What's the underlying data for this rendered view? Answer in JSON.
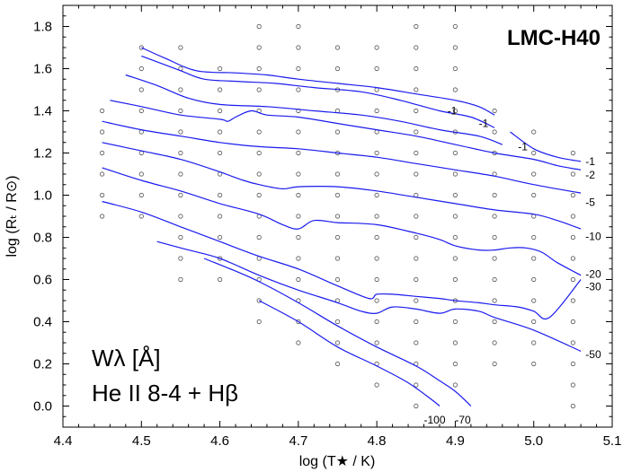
{
  "chart_data": {
    "type": "line",
    "title": "LMC-H40",
    "xlabel": "log (T★ / K)",
    "ylabel": "log (Rₜ / R⊙)",
    "xlim": [
      4.4,
      5.1
    ],
    "ylim": [
      -0.1,
      1.9
    ],
    "xticks": [
      4.4,
      4.5,
      4.6,
      4.7,
      4.8,
      4.9,
      5.0,
      5.1
    ],
    "yticks": [
      0.0,
      0.2,
      0.4,
      0.6,
      0.8,
      1.0,
      1.2,
      1.4,
      1.6,
      1.8
    ],
    "xtick_labels": [
      "4.4",
      "4.5",
      "4.6",
      "4.7",
      "4.8",
      "4.9",
      "5.0",
      "5.1"
    ],
    "ytick_labels": [
      "0.0",
      "0.2",
      "0.4",
      "0.6",
      "0.8",
      "1.0",
      "1.2",
      "1.4",
      "1.6",
      "1.8"
    ],
    "annotation_line1": "Wλ [Å]",
    "annotation_line2": "He II 8-4 + Hβ",
    "grid": false,
    "series": [
      {
        "label": "-1",
        "points": [
          [
            4.5,
            1.7
          ],
          [
            4.53,
            1.65
          ],
          [
            4.57,
            1.59
          ],
          [
            4.62,
            1.58
          ],
          [
            4.66,
            1.57
          ],
          [
            4.7,
            1.55
          ],
          [
            4.75,
            1.53
          ],
          [
            4.8,
            1.51
          ],
          [
            4.85,
            1.48
          ],
          [
            4.9,
            1.45
          ],
          [
            4.93,
            1.42
          ],
          [
            4.95,
            1.38
          ]
        ]
      },
      {
        "label": "-1",
        "points": [
          [
            4.5,
            1.66
          ],
          [
            4.55,
            1.59
          ],
          [
            4.58,
            1.55
          ],
          [
            4.62,
            1.54
          ],
          [
            4.67,
            1.53
          ],
          [
            4.72,
            1.51
          ],
          [
            4.78,
            1.49
          ],
          [
            4.83,
            1.45
          ],
          [
            4.88,
            1.4
          ],
          [
            4.92,
            1.37
          ],
          [
            4.95,
            1.32
          ]
        ]
      },
      {
        "label": "-1",
        "points": [
          [
            4.97,
            1.3
          ],
          [
            5.0,
            1.22
          ],
          [
            5.03,
            1.18
          ],
          [
            5.06,
            1.16
          ]
        ]
      },
      {
        "label": "-1",
        "points": [
          [
            4.48,
            1.57
          ],
          [
            4.52,
            1.52
          ],
          [
            4.56,
            1.46
          ],
          [
            4.6,
            1.43
          ],
          [
            4.66,
            1.42
          ],
          [
            4.72,
            1.4
          ],
          [
            4.78,
            1.38
          ],
          [
            4.83,
            1.35
          ],
          [
            4.88,
            1.31
          ],
          [
            4.93,
            1.28
          ],
          [
            4.96,
            1.24
          ]
        ]
      },
      {
        "label": "-2",
        "points": [
          [
            4.46,
            1.45
          ],
          [
            4.5,
            1.42
          ],
          [
            4.55,
            1.38
          ],
          [
            4.6,
            1.36
          ],
          [
            4.61,
            1.35
          ],
          [
            4.62,
            1.37
          ],
          [
            4.64,
            1.4
          ],
          [
            4.66,
            1.38
          ],
          [
            4.7,
            1.37
          ],
          [
            4.75,
            1.34
          ],
          [
            4.8,
            1.31
          ],
          [
            4.85,
            1.28
          ],
          [
            4.9,
            1.24
          ],
          [
            4.95,
            1.2
          ],
          [
            5.0,
            1.17
          ],
          [
            5.03,
            1.14
          ],
          [
            5.06,
            1.12
          ]
        ]
      },
      {
        "label": "-5",
        "points": [
          [
            4.45,
            1.35
          ],
          [
            4.5,
            1.31
          ],
          [
            4.55,
            1.28
          ],
          [
            4.6,
            1.25
          ],
          [
            4.65,
            1.23
          ],
          [
            4.7,
            1.22
          ],
          [
            4.75,
            1.2
          ],
          [
            4.8,
            1.18
          ],
          [
            4.85,
            1.15
          ],
          [
            4.9,
            1.12
          ],
          [
            4.95,
            1.09
          ],
          [
            5.0,
            1.05
          ],
          [
            5.06,
            1.01
          ]
        ]
      },
      {
        "label": "-10",
        "points": [
          [
            4.45,
            1.25
          ],
          [
            4.5,
            1.21
          ],
          [
            4.55,
            1.17
          ],
          [
            4.6,
            1.11
          ],
          [
            4.63,
            1.07
          ],
          [
            4.65,
            1.05
          ],
          [
            4.68,
            1.03
          ],
          [
            4.7,
            1.04
          ],
          [
            4.75,
            1.04
          ],
          [
            4.8,
            1.02
          ],
          [
            4.85,
            0.99
          ],
          [
            4.9,
            0.96
          ],
          [
            4.95,
            0.93
          ],
          [
            5.0,
            0.91
          ],
          [
            5.03,
            0.88
          ],
          [
            5.06,
            0.84
          ]
        ]
      },
      {
        "label": "-20",
        "points": [
          [
            4.45,
            1.13
          ],
          [
            4.5,
            1.07
          ],
          [
            4.55,
            1.02
          ],
          [
            4.6,
            0.96
          ],
          [
            4.65,
            0.91
          ],
          [
            4.68,
            0.86
          ],
          [
            4.7,
            0.84
          ],
          [
            4.72,
            0.88
          ],
          [
            4.75,
            0.87
          ],
          [
            4.8,
            0.86
          ],
          [
            4.85,
            0.82
          ],
          [
            4.88,
            0.79
          ],
          [
            4.9,
            0.76
          ],
          [
            4.93,
            0.74
          ],
          [
            4.95,
            0.74
          ],
          [
            4.97,
            0.75
          ],
          [
            4.99,
            0.75
          ],
          [
            5.01,
            0.73
          ],
          [
            5.03,
            0.68
          ],
          [
            5.06,
            0.62
          ]
        ]
      },
      {
        "label": "-30",
        "points": [
          [
            4.45,
            0.97
          ],
          [
            4.5,
            0.92
          ],
          [
            4.55,
            0.85
          ],
          [
            4.6,
            0.78
          ],
          [
            4.65,
            0.71
          ],
          [
            4.7,
            0.65
          ],
          [
            4.75,
            0.57
          ],
          [
            4.79,
            0.51
          ],
          [
            4.8,
            0.53
          ],
          [
            4.82,
            0.53
          ],
          [
            4.85,
            0.52
          ],
          [
            4.88,
            0.51
          ],
          [
            4.9,
            0.5
          ],
          [
            4.93,
            0.49
          ],
          [
            4.95,
            0.48
          ],
          [
            4.98,
            0.47
          ],
          [
            5.0,
            0.45
          ],
          [
            5.02,
            0.42
          ],
          [
            5.06,
            0.6
          ]
        ]
      },
      {
        "label": "-50",
        "points": [
          [
            4.52,
            0.78
          ],
          [
            4.56,
            0.74
          ],
          [
            4.6,
            0.7
          ],
          [
            4.65,
            0.62
          ],
          [
            4.7,
            0.55
          ],
          [
            4.75,
            0.49
          ],
          [
            4.78,
            0.45
          ],
          [
            4.8,
            0.44
          ],
          [
            4.82,
            0.47
          ],
          [
            4.85,
            0.46
          ],
          [
            4.88,
            0.44
          ],
          [
            4.9,
            0.46
          ],
          [
            4.93,
            0.45
          ],
          [
            4.95,
            0.42
          ],
          [
            5.0,
            0.36
          ],
          [
            5.06,
            0.26
          ]
        ]
      },
      {
        "label": "-70",
        "points": [
          [
            4.58,
            0.7
          ],
          [
            4.62,
            0.64
          ],
          [
            4.65,
            0.59
          ],
          [
            4.7,
            0.49
          ],
          [
            4.75,
            0.38
          ],
          [
            4.8,
            0.28
          ],
          [
            4.85,
            0.19
          ],
          [
            4.88,
            0.12
          ],
          [
            4.9,
            0.07
          ],
          [
            4.92,
            0.0
          ]
        ]
      },
      {
        "label": "-100",
        "points": [
          [
            4.65,
            0.5
          ],
          [
            4.7,
            0.4
          ],
          [
            4.75,
            0.28
          ],
          [
            4.8,
            0.19
          ],
          [
            4.84,
            0.11
          ],
          [
            4.87,
            0.03
          ],
          [
            4.88,
            0.0
          ]
        ]
      }
    ],
    "contour_labels": [
      {
        "text": "-1",
        "x": 4.89,
        "y": 1.4
      },
      {
        "text": "-1",
        "x": 4.93,
        "y": 1.34
      },
      {
        "text": "-1",
        "x": 4.98,
        "y": 1.23
      },
      {
        "text": "-1",
        "x": 5.066,
        "y": 1.16
      },
      {
        "text": "-2",
        "x": 5.066,
        "y": 1.095
      },
      {
        "text": "-5",
        "x": 5.066,
        "y": 0.965
      },
      {
        "text": "-10",
        "x": 5.066,
        "y": 0.805
      },
      {
        "text": "-20",
        "x": 5.066,
        "y": 0.625
      },
      {
        "text": "-30",
        "x": 5.066,
        "y": 0.565
      },
      {
        "text": "-50",
        "x": 5.066,
        "y": 0.245
      },
      {
        "text": "-70",
        "x": 4.9,
        "y": -0.065
      },
      {
        "text": "-100",
        "x": 4.86,
        "y": -0.065
      }
    ],
    "grid_models": [
      [
        4.45,
        [
          0.9,
          1.0,
          1.1,
          1.2,
          1.3,
          1.4
        ]
      ],
      [
        4.5,
        [
          0.9,
          1.0,
          1.1,
          1.2,
          1.3,
          1.4,
          1.5,
          1.6,
          1.7
        ]
      ],
      [
        4.55,
        [
          0.6,
          0.7,
          0.8,
          0.9,
          1.0,
          1.1,
          1.2,
          1.3,
          1.4,
          1.5,
          1.6,
          1.7
        ]
      ],
      [
        4.6,
        [
          0.6,
          0.7,
          0.8,
          0.9,
          1.0,
          1.1,
          1.2,
          1.3,
          1.4,
          1.5,
          1.6
        ]
      ],
      [
        4.65,
        [
          0.4,
          0.5,
          0.6,
          0.7,
          0.8,
          0.9,
          1.0,
          1.1,
          1.2,
          1.3,
          1.4,
          1.5,
          1.6,
          1.7,
          1.8
        ]
      ],
      [
        4.7,
        [
          0.3,
          0.4,
          0.5,
          0.6,
          0.7,
          0.8,
          0.9,
          1.0,
          1.1,
          1.2,
          1.3,
          1.4,
          1.5,
          1.6,
          1.7,
          1.8
        ]
      ],
      [
        4.75,
        [
          0.2,
          0.3,
          0.4,
          0.5,
          0.6,
          0.7,
          0.8,
          0.9,
          1.0,
          1.1,
          1.2,
          1.3,
          1.4,
          1.5,
          1.6,
          1.7
        ]
      ],
      [
        4.8,
        [
          0.1,
          0.2,
          0.3,
          0.4,
          0.5,
          0.6,
          0.7,
          0.8,
          0.9,
          1.0,
          1.1,
          1.2,
          1.3,
          1.4,
          1.5,
          1.6,
          1.7
        ]
      ],
      [
        4.85,
        [
          0.0,
          0.1,
          0.2,
          0.3,
          0.4,
          0.5,
          0.6,
          0.7,
          0.8,
          0.9,
          1.0,
          1.1,
          1.2,
          1.3,
          1.4,
          1.5,
          1.6,
          1.7,
          1.8
        ]
      ],
      [
        4.9,
        [
          0.1,
          0.2,
          0.3,
          0.4,
          0.5,
          0.6,
          0.7,
          0.8,
          0.9,
          1.0,
          1.1,
          1.2,
          1.3,
          1.4,
          1.5,
          1.6,
          1.7,
          1.8
        ]
      ],
      [
        4.95,
        [
          0.2,
          0.3,
          0.4,
          0.5,
          0.6,
          0.7,
          0.8,
          0.9,
          1.0,
          1.1,
          1.2,
          1.3,
          1.4
        ]
      ],
      [
        5.0,
        [
          0.2,
          0.3,
          0.4,
          0.5,
          0.6,
          0.7,
          0.8,
          0.9,
          1.0,
          1.1,
          1.2,
          1.3
        ]
      ],
      [
        5.05,
        [
          0.0,
          0.1,
          0.2,
          0.3,
          0.4,
          0.5,
          0.6,
          0.7,
          0.8,
          0.9,
          1.0,
          1.1,
          1.2
        ]
      ]
    ],
    "colors": {
      "contour": "#1a1aee",
      "axis": "#000000",
      "grid_marker": "#555555"
    }
  }
}
